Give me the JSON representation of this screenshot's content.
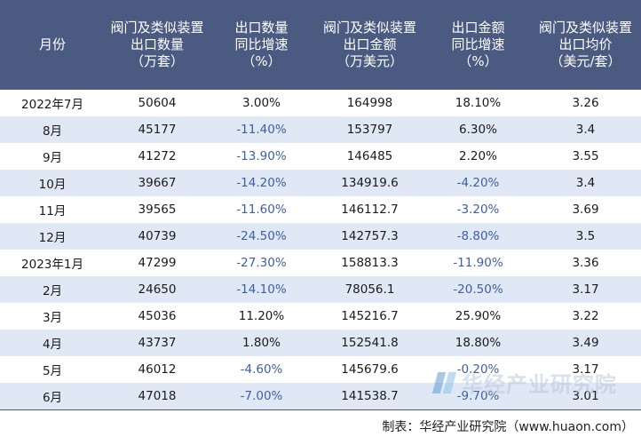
{
  "headers": [
    "月份",
    "阀门及类似装置\n出口数量\n（万套）",
    "出口数量\n同比增速\n（%）",
    "阀门及类似装置\n出口金额\n（万美元）",
    "出口金额\n同比增速\n（%）",
    "阀门及类似装置\n出口均价\n（美元/套）"
  ],
  "rows": [
    [
      "2022年7月",
      "50604",
      "3.00%",
      "164998",
      "18.10%",
      "3.26"
    ],
    [
      "8月",
      "45177",
      "-11.40%",
      "153797",
      "6.30%",
      "3.4"
    ],
    [
      "9月",
      "41272",
      "-13.90%",
      "146485",
      "2.20%",
      "3.55"
    ],
    [
      "10月",
      "39667",
      "-14.20%",
      "134919.6",
      "-4.20%",
      "3.4"
    ],
    [
      "11月",
      "39565",
      "-11.60%",
      "146112.7",
      "-3.20%",
      "3.69"
    ],
    [
      "12月",
      "40739",
      "-24.50%",
      "142757.3",
      "-8.80%",
      "3.5"
    ],
    [
      "2023年1月",
      "47299",
      "-27.30%",
      "158813.3",
      "-11.90%",
      "3.36"
    ],
    [
      "2月",
      "24650",
      "-14.10%",
      "78056.1",
      "-20.50%",
      "3.17"
    ],
    [
      "3月",
      "45036",
      "11.20%",
      "145216.7",
      "25.90%",
      "3.22"
    ],
    [
      "4月",
      "43737",
      "1.80%",
      "152541.8",
      "18.80%",
      "3.49"
    ],
    [
      "5月",
      "46012",
      "-4.60%",
      "145679.6",
      "-0.20%",
      "3.17"
    ],
    [
      "6月",
      "47018",
      "-7.00%",
      "141538.7",
      "-9.70%",
      "3.01"
    ]
  ],
  "watermark": "华经产业研究院",
  "footer": "制表：华经产业研究院（www.huaon.com）",
  "colors": {
    "header_bg": "#4a5a81",
    "row_alt_bg": "#dfe8f4",
    "negative_text": "#3f5fa0"
  }
}
